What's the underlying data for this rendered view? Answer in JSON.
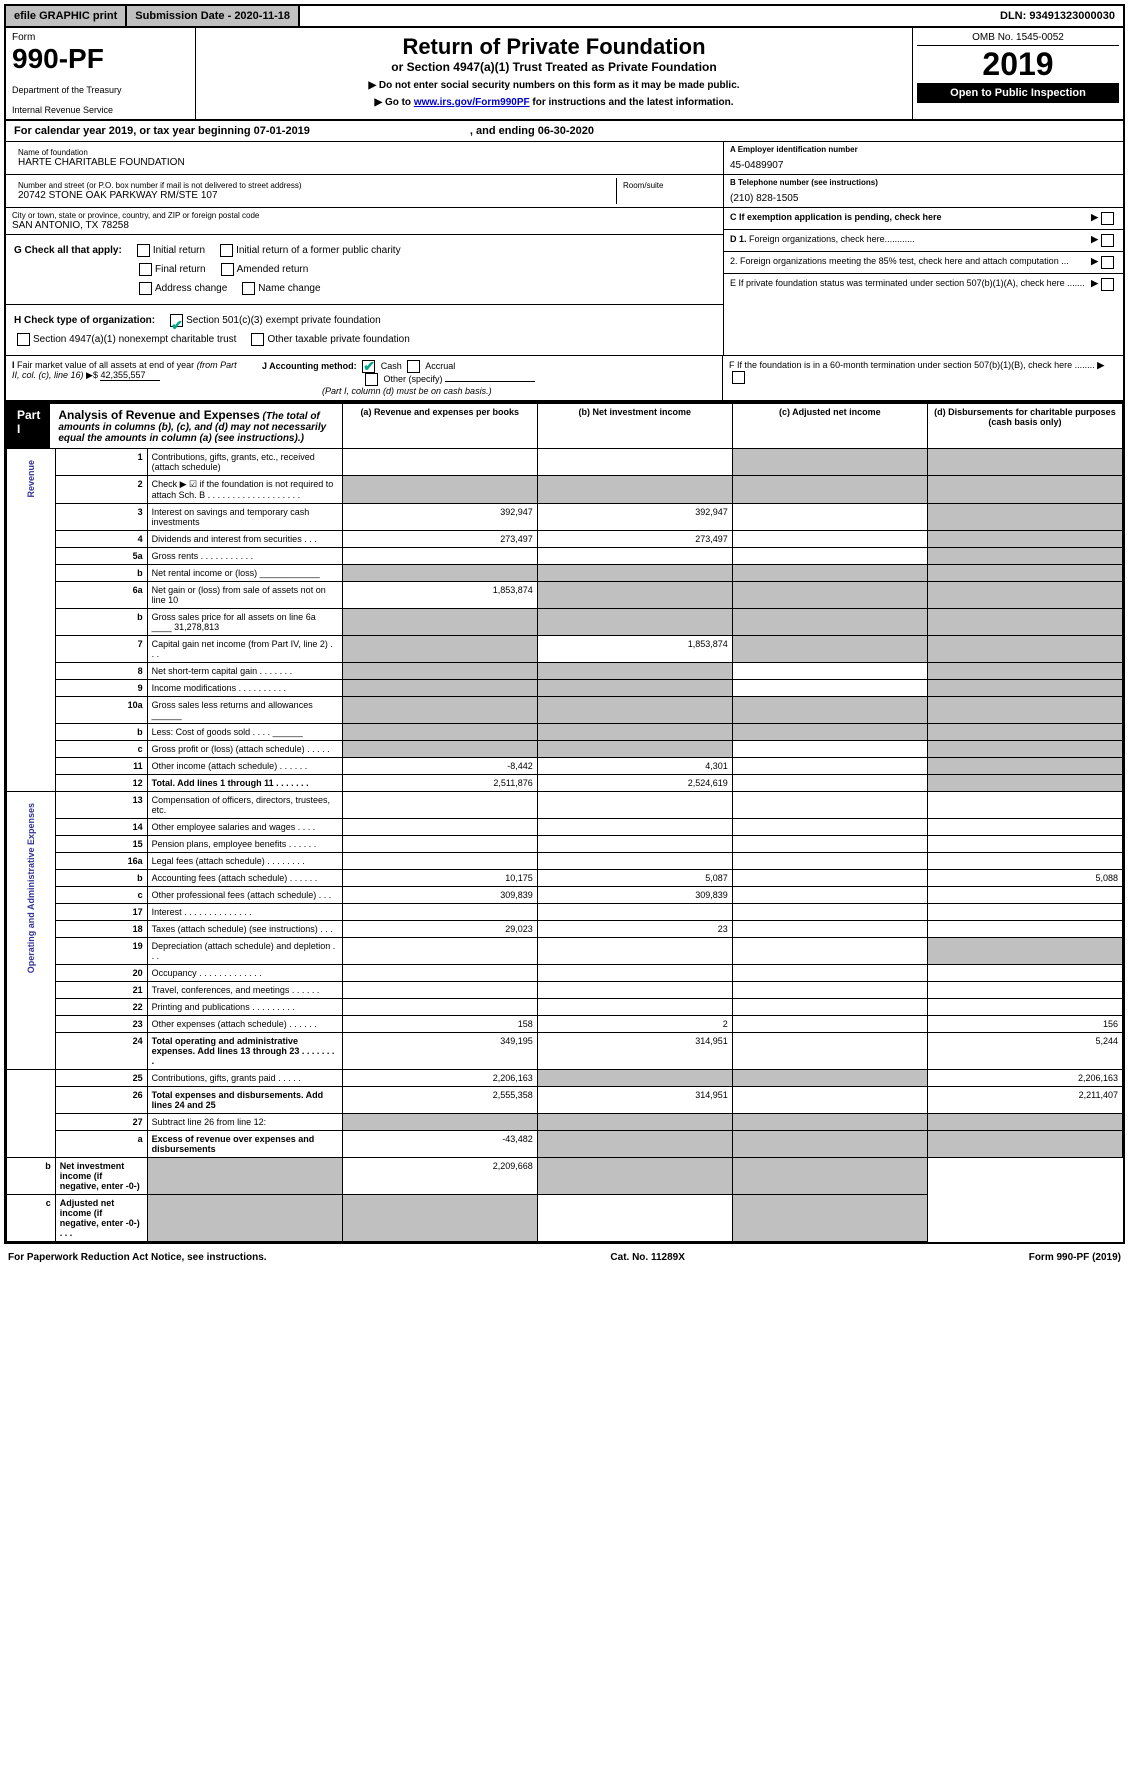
{
  "topbar": {
    "efile": "efile GRAPHIC print",
    "submission": "Submission Date - 2020-11-18",
    "dln": "DLN: 93491323000030"
  },
  "header": {
    "form_label": "Form",
    "form_num": "990-PF",
    "dept1": "Department of the Treasury",
    "dept2": "Internal Revenue Service",
    "title": "Return of Private Foundation",
    "subtitle": "or Section 4947(a)(1) Trust Treated as Private Foundation",
    "note1": "▶ Do not enter social security numbers on this form as it may be made public.",
    "note2_a": "▶ Go to ",
    "note2_link": "www.irs.gov/Form990PF",
    "note2_b": " for instructions and the latest information.",
    "omb": "OMB No. 1545-0052",
    "year": "2019",
    "open": "Open to Public Inspection"
  },
  "calendar": {
    "text_a": "For calendar year 2019, or tax year beginning 07-01-2019",
    "text_b": ", and ending 06-30-2020"
  },
  "foundation": {
    "name_label": "Name of foundation",
    "name": "HARTE CHARITABLE FOUNDATION",
    "addr_label": "Number and street (or P.O. box number if mail is not delivered to street address)",
    "addr": "20742 STONE OAK PARKWAY RM/STE 107",
    "room_label": "Room/suite",
    "city_label": "City or town, state or province, country, and ZIP or foreign postal code",
    "city": "SAN ANTONIO, TX  78258",
    "ein_label": "A Employer identification number",
    "ein": "45-0489907",
    "phone_label": "B Telephone number (see instructions)",
    "phone": "(210) 828-1505",
    "c_label": "C If exemption application is pending, check here"
  },
  "checks": {
    "g_label": "G Check all that apply:",
    "g_initial": "Initial return",
    "g_initial_former": "Initial return of a former public charity",
    "g_final": "Final return",
    "g_amended": "Amended return",
    "g_addr": "Address change",
    "g_name": "Name change",
    "h_label": "H Check type of organization:",
    "h_501": "Section 501(c)(3) exempt private foundation",
    "h_4947": "Section 4947(a)(1) nonexempt charitable trust",
    "h_other": "Other taxable private foundation",
    "d1": "D 1. Foreign organizations, check here............",
    "d2": "2. Foreign organizations meeting the 85% test, check here and attach computation ...",
    "e": "E  If private foundation status was terminated under section 507(b)(1)(A), check here .......",
    "i_label": "I Fair market value of all assets at end of year (from Part II, col. (c), line 16) ▶$ ",
    "i_val": "42,355,557",
    "j_label": "J Accounting method:",
    "j_cash": "Cash",
    "j_accrual": "Accrual",
    "j_other": "Other (specify)",
    "j_note": "(Part I, column (d) must be on cash basis.)",
    "f": "F  If the foundation is in a 60-month termination under section 507(b)(1)(B), check here ........"
  },
  "part1": {
    "badge": "Part I",
    "title": "Analysis of Revenue and Expenses",
    "title_note": " (The total of amounts in columns (b), (c), and (d) may not necessarily equal the amounts in column (a) (see instructions).)",
    "col_a": "(a)  Revenue and expenses per books",
    "col_b": "(b)  Net investment income",
    "col_c": "(c)  Adjusted net income",
    "col_d": "(d)  Disbursements for charitable purposes (cash basis only)"
  },
  "side_labels": {
    "revenue": "Revenue",
    "expenses": "Operating and Administrative Expenses"
  },
  "rows": [
    {
      "n": "1",
      "desc": "Contributions, gifts, grants, etc., received (attach schedule)",
      "a": "",
      "b": "",
      "c": "s",
      "d": "s"
    },
    {
      "n": "2",
      "desc": "Check ▶ ☑ if the foundation is not required to attach Sch. B  . . . . . . . . . . . . . . . . . . .",
      "a": "s",
      "b": "s",
      "c": "s",
      "d": "s"
    },
    {
      "n": "3",
      "desc": "Interest on savings and temporary cash investments",
      "a": "392,947",
      "b": "392,947",
      "c": "",
      "d": "s"
    },
    {
      "n": "4",
      "desc": "Dividends and interest from securities   .  .  .",
      "a": "273,497",
      "b": "273,497",
      "c": "",
      "d": "s"
    },
    {
      "n": "5a",
      "desc": "Gross rents   .  .  .  .  .  .  .  .  .  .  .",
      "a": "",
      "b": "",
      "c": "",
      "d": "s"
    },
    {
      "n": "b",
      "desc": "Net rental income or (loss)  ____________",
      "a": "s",
      "b": "s",
      "c": "s",
      "d": "s"
    },
    {
      "n": "6a",
      "desc": "Net gain or (loss) from sale of assets not on line 10",
      "a": "1,853,874",
      "b": "s",
      "c": "s",
      "d": "s"
    },
    {
      "n": "b",
      "desc": "Gross sales price for all assets on line 6a ____ 31,278,813",
      "a": "s",
      "b": "s",
      "c": "s",
      "d": "s"
    },
    {
      "n": "7",
      "desc": "Capital gain net income (from Part IV, line 2)   .  .  .",
      "a": "s",
      "b": "1,853,874",
      "c": "s",
      "d": "s"
    },
    {
      "n": "8",
      "desc": "Net short-term capital gain   .  .  .  .  .  .  .",
      "a": "s",
      "b": "s",
      "c": "",
      "d": "s"
    },
    {
      "n": "9",
      "desc": "Income modifications  .  .  .  .  .  .  .  .  .  .",
      "a": "s",
      "b": "s",
      "c": "",
      "d": "s"
    },
    {
      "n": "10a",
      "desc": "Gross sales less returns and allowances  ______",
      "a": "s",
      "b": "s",
      "c": "s",
      "d": "s"
    },
    {
      "n": "b",
      "desc": "Less: Cost of goods sold   .  .  .  .  ______",
      "a": "s",
      "b": "s",
      "c": "s",
      "d": "s"
    },
    {
      "n": "c",
      "desc": "Gross profit or (loss) (attach schedule)   .  .  .  .  .",
      "a": "s",
      "b": "s",
      "c": "",
      "d": "s"
    },
    {
      "n": "11",
      "desc": "Other income (attach schedule)   .  .  .  .  .  .",
      "a": "-8,442",
      "b": "4,301",
      "c": "",
      "d": "s"
    },
    {
      "n": "12",
      "desc": "Total. Add lines 1 through 11   .  .  .  .  .  .  .",
      "a": "2,511,876",
      "b": "2,524,619",
      "c": "",
      "d": "s",
      "bold": true
    },
    {
      "n": "13",
      "desc": "Compensation of officers, directors, trustees, etc.",
      "a": "",
      "b": "",
      "c": "",
      "d": ""
    },
    {
      "n": "14",
      "desc": "Other employee salaries and wages   .  .  .  .",
      "a": "",
      "b": "",
      "c": "",
      "d": ""
    },
    {
      "n": "15",
      "desc": "Pension plans, employee benefits   .  .  .  .  .  .",
      "a": "",
      "b": "",
      "c": "",
      "d": ""
    },
    {
      "n": "16a",
      "desc": "Legal fees (attach schedule)  .  .  .  .  .  .  .  .",
      "a": "",
      "b": "",
      "c": "",
      "d": ""
    },
    {
      "n": "b",
      "desc": "Accounting fees (attach schedule)  .  .  .  .  .  .",
      "a": "10,175",
      "b": "5,087",
      "c": "",
      "d": "5,088"
    },
    {
      "n": "c",
      "desc": "Other professional fees (attach schedule)   .  .  .",
      "a": "309,839",
      "b": "309,839",
      "c": "",
      "d": ""
    },
    {
      "n": "17",
      "desc": "Interest   .  .  .  .  .  .  .  .  .  .  .  .  .  .",
      "a": "",
      "b": "",
      "c": "",
      "d": ""
    },
    {
      "n": "18",
      "desc": "Taxes (attach schedule) (see instructions)   .  .  .",
      "a": "29,023",
      "b": "23",
      "c": "",
      "d": ""
    },
    {
      "n": "19",
      "desc": "Depreciation (attach schedule) and depletion   .  .  .",
      "a": "",
      "b": "",
      "c": "",
      "d": "s"
    },
    {
      "n": "20",
      "desc": "Occupancy  .  .  .  .  .  .  .  .  .  .  .  .  .",
      "a": "",
      "b": "",
      "c": "",
      "d": ""
    },
    {
      "n": "21",
      "desc": "Travel, conferences, and meetings  .  .  .  .  .  .",
      "a": "",
      "b": "",
      "c": "",
      "d": ""
    },
    {
      "n": "22",
      "desc": "Printing and publications  .  .  .  .  .  .  .  .  .",
      "a": "",
      "b": "",
      "c": "",
      "d": ""
    },
    {
      "n": "23",
      "desc": "Other expenses (attach schedule)  .  .  .  .  .  .",
      "a": "158",
      "b": "2",
      "c": "",
      "d": "156"
    },
    {
      "n": "24",
      "desc": "Total operating and administrative expenses. Add lines 13 through 23   .  .  .  .  .  .  .  .",
      "a": "349,195",
      "b": "314,951",
      "c": "",
      "d": "5,244",
      "bold": true
    },
    {
      "n": "25",
      "desc": "Contributions, gifts, grants paid   .  .  .  .  .",
      "a": "2,206,163",
      "b": "s",
      "c": "s",
      "d": "2,206,163"
    },
    {
      "n": "26",
      "desc": "Total expenses and disbursements. Add lines 24 and 25",
      "a": "2,555,358",
      "b": "314,951",
      "c": "",
      "d": "2,211,407",
      "bold": true
    },
    {
      "n": "27",
      "desc": "Subtract line 26 from line 12:",
      "a": "s",
      "b": "s",
      "c": "s",
      "d": "s"
    },
    {
      "n": "a",
      "desc": "Excess of revenue over expenses and disbursements",
      "a": "-43,482",
      "b": "s",
      "c": "s",
      "d": "s",
      "bold": true
    },
    {
      "n": "b",
      "desc": "Net investment income (if negative, enter -0-)",
      "a": "s",
      "b": "2,209,668",
      "c": "s",
      "d": "s",
      "bold": true
    },
    {
      "n": "c",
      "desc": "Adjusted net income (if negative, enter -0-)   .  .  .",
      "a": "s",
      "b": "s",
      "c": "",
      "d": "s",
      "bold": true
    }
  ],
  "footer": {
    "left": "For Paperwork Reduction Act Notice, see instructions.",
    "mid": "Cat. No. 11289X",
    "right": "Form 990-PF (2019)"
  }
}
